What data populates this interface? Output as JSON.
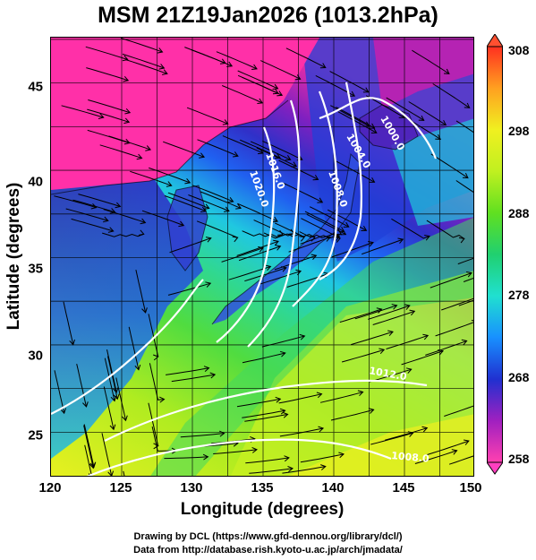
{
  "title": "MSM 21Z19Jan2026 (1013.2hPa)",
  "axes": {
    "xlabel": "Longitude (degrees)",
    "ylabel": "Latitude  (degrees)",
    "xticks": [
      "120",
      "125",
      "130",
      "135",
      "140",
      "145",
      "150"
    ],
    "yticks": [
      "45",
      "40",
      "35",
      "30",
      "25"
    ],
    "xlim": [
      120,
      150
    ],
    "ylim": [
      22.4,
      47.6
    ]
  },
  "colorbar": {
    "ticks": [
      "308",
      "298",
      "288",
      "278",
      "268",
      "258"
    ],
    "range": [
      258,
      308
    ],
    "colors": [
      "#ff3fa0",
      "#a020c0",
      "#2030d0",
      "#1890ff",
      "#20e0d0",
      "#20d070",
      "#60e020",
      "#c0f020",
      "#f0f020",
      "#ffa020",
      "#ff3020"
    ]
  },
  "contour_labels": [
    "1016.0",
    "1020.0",
    "1008.0",
    "1004.0",
    "1000.0",
    "1012.0",
    "1008.0"
  ],
  "credits": {
    "line1": "Drawing by DCL (https://www.gfd-dennou.org/library/dcl/)",
    "line2": "Data from http://database.rish.kyoto-u.ac.jp/arch/jmadata/"
  }
}
